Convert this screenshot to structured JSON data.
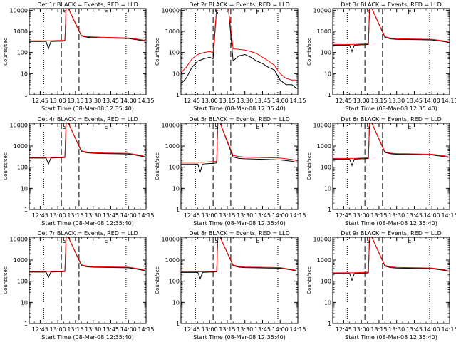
{
  "figure": {
    "marker_letters": [
      "S",
      "E"
    ]
  },
  "colors": {
    "events": "#000000",
    "lld": "#ff0000",
    "frame": "#000000",
    "background": "#ffffff"
  },
  "chart_data": [
    {
      "type": "line",
      "panel": "1r",
      "title": "Det 1r BLACK = Events, RED = LLD",
      "ylabel": "Counts/sec",
      "xlabel": "Start Time (08-Mar-08 12:35:40)",
      "yscale": "log",
      "ylim": [
        1,
        12000
      ],
      "x_ticks": [
        "12:45",
        "13:00",
        "13:15",
        "13:30",
        "13:45",
        "14:00",
        "14:15"
      ],
      "series": [
        {
          "x": [
            "12:35",
            "12:45",
            "12:50",
            "12:52",
            "12:54",
            "13:00",
            "13:03",
            "13:06",
            "13:07",
            "13:09",
            "13:20",
            "13:25",
            "13:30",
            "13:40",
            "13:50",
            "14:00",
            "14:10",
            "14:14"
          ],
          "y": [
            330,
            330,
            330,
            150,
            330,
            340,
            340,
            350,
            12000,
            12000,
            600,
            520,
            500,
            480,
            470,
            460,
            380,
            340
          ]
        },
        {
          "x": [
            "12:35",
            "12:45",
            "12:50",
            "12:52",
            "12:54",
            "13:00",
            "13:03",
            "13:06",
            "13:07",
            "13:09",
            "13:20",
            "13:25",
            "13:30",
            "13:40",
            "13:50",
            "14:00",
            "14:10",
            "14:14"
          ],
          "y": [
            360,
            360,
            360,
            360,
            360,
            370,
            370,
            380,
            12000,
            12000,
            650,
            570,
            540,
            520,
            510,
            490,
            410,
            370
          ]
        }
      ]
    },
    {
      "type": "line",
      "panel": "2r",
      "title": "Det 2r BLACK = Events, RED = LLD",
      "ylabel": "Counts/sec",
      "xlabel": "Start Time (08-Mar-08 12:35:40)",
      "yscale": "log",
      "ylim": [
        1,
        12000
      ],
      "x_ticks": [
        "12:45",
        "13:00",
        "13:15",
        "13:30",
        "13:45",
        "14:00",
        "14:15"
      ],
      "series": [
        {
          "x": [
            "12:35",
            "12:40",
            "12:45",
            "12:50",
            "12:55",
            "13:00",
            "13:03",
            "13:06",
            "13:12",
            "13:16",
            "13:20",
            "13:25",
            "13:30",
            "13:35",
            "13:40",
            "13:45",
            "13:50",
            "13:55",
            "14:00",
            "14:05",
            "14:10",
            "14:14"
          ],
          "y": [
            3,
            6,
            20,
            40,
            50,
            60,
            50,
            12000,
            12000,
            12000,
            40,
            70,
            80,
            60,
            40,
            30,
            20,
            15,
            5,
            3,
            3,
            2
          ]
        },
        {
          "x": [
            "12:35",
            "12:40",
            "12:45",
            "12:50",
            "12:55",
            "13:00",
            "13:03",
            "13:06",
            "13:12",
            "13:16",
            "13:20",
            "13:25",
            "13:30",
            "13:35",
            "13:40",
            "13:45",
            "13:50",
            "13:55",
            "14:00",
            "14:05",
            "14:10",
            "14:14"
          ],
          "y": [
            10,
            20,
            50,
            80,
            100,
            110,
            100,
            12000,
            12000,
            12000,
            150,
            140,
            130,
            110,
            90,
            60,
            40,
            25,
            10,
            6,
            5,
            5
          ]
        }
      ]
    },
    {
      "type": "line",
      "panel": "3r",
      "title": "Det 3r BLACK = Events, RED = LLD",
      "ylabel": "Counts/sec",
      "xlabel": "Start Time (08-Mar-08 12:35:40)",
      "yscale": "log",
      "ylim": [
        1,
        12000
      ],
      "x_ticks": [
        "12:45",
        "13:00",
        "13:15",
        "13:30",
        "13:45",
        "14:00",
        "14:15"
      ],
      "series": [
        {
          "x": [
            "12:35",
            "12:45",
            "12:50",
            "12:52",
            "12:54",
            "13:00",
            "13:03",
            "13:06",
            "13:07",
            "13:09",
            "13:20",
            "13:25",
            "13:30",
            "13:40",
            "13:50",
            "14:00",
            "14:10",
            "14:14"
          ],
          "y": [
            220,
            220,
            220,
            110,
            220,
            230,
            230,
            240,
            12000,
            12000,
            520,
            440,
            420,
            410,
            400,
            390,
            330,
            300
          ]
        },
        {
          "x": [
            "12:35",
            "12:45",
            "12:50",
            "12:52",
            "12:54",
            "13:00",
            "13:03",
            "13:06",
            "13:07",
            "13:09",
            "13:20",
            "13:25",
            "13:30",
            "13:40",
            "13:50",
            "14:00",
            "14:10",
            "14:14"
          ],
          "y": [
            240,
            240,
            240,
            240,
            240,
            250,
            250,
            260,
            12000,
            12000,
            560,
            480,
            450,
            440,
            430,
            420,
            360,
            320
          ]
        }
      ]
    },
    {
      "type": "line",
      "panel": "4r",
      "title": "Det 4r BLACK = Events, RED = LLD",
      "ylabel": "Counts/sec",
      "xlabel": "Start Time (08-Mar-08 12:35:40)",
      "yscale": "log",
      "ylim": [
        1,
        12000
      ],
      "x_ticks": [
        "12:45",
        "13:00",
        "13:15",
        "13:30",
        "13:45",
        "14:00",
        "14:15"
      ],
      "series": [
        {
          "x": [
            "12:35",
            "12:45",
            "12:50",
            "12:52",
            "12:54",
            "13:00",
            "13:03",
            "13:06",
            "13:07",
            "13:09",
            "13:20",
            "13:25",
            "13:30",
            "13:40",
            "13:50",
            "14:00",
            "14:10",
            "14:14"
          ],
          "y": [
            270,
            270,
            270,
            140,
            270,
            280,
            280,
            290,
            12000,
            12000,
            560,
            480,
            460,
            440,
            430,
            420,
            340,
            300
          ]
        },
        {
          "x": [
            "12:35",
            "12:45",
            "12:50",
            "12:52",
            "12:54",
            "13:00",
            "13:03",
            "13:06",
            "13:07",
            "13:09",
            "13:20",
            "13:25",
            "13:30",
            "13:40",
            "13:50",
            "14:00",
            "14:10",
            "14:14"
          ],
          "y": [
            290,
            290,
            290,
            290,
            290,
            300,
            300,
            310,
            12000,
            12000,
            600,
            520,
            490,
            470,
            460,
            450,
            370,
            320
          ]
        }
      ]
    },
    {
      "type": "line",
      "panel": "5r",
      "title": "Det 5r BLACK = Events, RED = LLD",
      "ylabel": "Counts/sec",
      "xlabel": "Start Time (08-Mar-08 12:35:40)",
      "yscale": "log",
      "ylim": [
        1,
        12000
      ],
      "x_ticks": [
        "12:45",
        "13:00",
        "13:15",
        "13:30",
        "13:45",
        "14:00",
        "14:15"
      ],
      "series": [
        {
          "x": [
            "12:35",
            "12:45",
            "12:50",
            "12:52",
            "12:54",
            "13:00",
            "13:03",
            "13:06",
            "13:07",
            "13:09",
            "13:20",
            "13:25",
            "13:30",
            "13:40",
            "13:50",
            "14:00",
            "14:10",
            "14:14"
          ],
          "y": [
            140,
            140,
            140,
            60,
            140,
            150,
            150,
            160,
            12000,
            12000,
            300,
            260,
            250,
            240,
            230,
            220,
            190,
            170
          ]
        },
        {
          "x": [
            "12:35",
            "12:45",
            "12:50",
            "12:52",
            "12:54",
            "13:00",
            "13:03",
            "13:06",
            "13:07",
            "13:09",
            "13:20",
            "13:25",
            "13:30",
            "13:40",
            "13:50",
            "14:00",
            "14:10",
            "14:14"
          ],
          "y": [
            170,
            170,
            170,
            170,
            170,
            180,
            180,
            190,
            12000,
            12000,
            360,
            320,
            300,
            290,
            280,
            270,
            230,
            210
          ]
        }
      ]
    },
    {
      "type": "line",
      "panel": "6r",
      "title": "Det 6r BLACK = Events, RED = LLD",
      "ylabel": "Counts/sec",
      "xlabel": "Start Time (08-Mar-08 12:35:40)",
      "yscale": "log",
      "ylim": [
        1,
        12000
      ],
      "x_ticks": [
        "12:45",
        "13:00",
        "13:15",
        "13:30",
        "13:45",
        "14:00",
        "14:15"
      ],
      "series": [
        {
          "x": [
            "12:35",
            "12:45",
            "12:50",
            "12:52",
            "12:54",
            "13:00",
            "13:03",
            "13:06",
            "13:07",
            "13:09",
            "13:20",
            "13:25",
            "13:30",
            "13:40",
            "13:50",
            "14:00",
            "14:10",
            "14:14"
          ],
          "y": [
            240,
            240,
            240,
            120,
            240,
            250,
            250,
            260,
            12000,
            12000,
            500,
            430,
            410,
            400,
            390,
            380,
            320,
            290
          ]
        },
        {
          "x": [
            "12:35",
            "12:45",
            "12:50",
            "12:52",
            "12:54",
            "13:00",
            "13:03",
            "13:06",
            "13:07",
            "13:09",
            "13:20",
            "13:25",
            "13:30",
            "13:40",
            "13:50",
            "14:00",
            "14:10",
            "14:14"
          ],
          "y": [
            260,
            260,
            260,
            260,
            260,
            270,
            270,
            280,
            12000,
            12000,
            540,
            460,
            440,
            430,
            420,
            410,
            350,
            310
          ]
        }
      ]
    },
    {
      "type": "line",
      "panel": "7r",
      "title": "Det 7r BLACK = Events, RED = LLD",
      "ylabel": "Counts/sec",
      "xlabel": "Start Time (08-Mar-08 12:35:40)",
      "yscale": "log",
      "ylim": [
        1,
        12000
      ],
      "x_ticks": [
        "12:45",
        "13:00",
        "13:15",
        "13:30",
        "13:45",
        "14:00",
        "14:15"
      ],
      "series": [
        {
          "x": [
            "12:35",
            "12:45",
            "12:50",
            "12:52",
            "12:54",
            "13:00",
            "13:03",
            "13:06",
            "13:07",
            "13:09",
            "13:20",
            "13:25",
            "13:30",
            "13:40",
            "13:50",
            "14:00",
            "14:10",
            "14:14"
          ],
          "y": [
            270,
            270,
            270,
            150,
            270,
            280,
            280,
            290,
            12000,
            12000,
            560,
            480,
            460,
            450,
            440,
            430,
            350,
            310
          ]
        },
        {
          "x": [
            "12:35",
            "12:45",
            "12:50",
            "12:52",
            "12:54",
            "13:00",
            "13:03",
            "13:06",
            "13:07",
            "13:09",
            "13:20",
            "13:25",
            "13:30",
            "13:40",
            "13:50",
            "14:00",
            "14:10",
            "14:14"
          ],
          "y": [
            290,
            290,
            290,
            290,
            290,
            300,
            300,
            310,
            12000,
            12000,
            600,
            520,
            490,
            480,
            470,
            460,
            380,
            330
          ]
        }
      ]
    },
    {
      "type": "line",
      "panel": "8r",
      "title": "Det 8r BLACK = Events, RED = LLD",
      "ylabel": "Counts/sec",
      "xlabel": "Start Time (08-Mar-08 12:35:40)",
      "yscale": "log",
      "ylim": [
        1,
        12000
      ],
      "x_ticks": [
        "12:45",
        "13:00",
        "13:15",
        "13:30",
        "13:45",
        "14:00",
        "14:15"
      ],
      "series": [
        {
          "x": [
            "12:35",
            "12:45",
            "12:50",
            "12:52",
            "12:54",
            "13:00",
            "13:03",
            "13:06",
            "13:07",
            "13:09",
            "13:20",
            "13:25",
            "13:30",
            "13:40",
            "13:50",
            "14:00",
            "14:10",
            "14:14"
          ],
          "y": [
            260,
            260,
            260,
            130,
            260,
            270,
            270,
            280,
            12000,
            12000,
            540,
            460,
            440,
            430,
            420,
            410,
            340,
            300
          ]
        },
        {
          "x": [
            "12:35",
            "12:45",
            "12:50",
            "12:52",
            "12:54",
            "13:00",
            "13:03",
            "13:06",
            "13:07",
            "13:09",
            "13:20",
            "13:25",
            "13:30",
            "13:40",
            "13:50",
            "14:00",
            "14:10",
            "14:14"
          ],
          "y": [
            280,
            280,
            280,
            280,
            280,
            290,
            290,
            300,
            12000,
            12000,
            580,
            500,
            470,
            460,
            450,
            440,
            360,
            320
          ]
        }
      ]
    },
    {
      "type": "line",
      "panel": "9r",
      "title": "Det 9r BLACK = Events, RED = LLD",
      "ylabel": "Counts/sec",
      "xlabel": "Start Time (08-Mar-08 12:35:40)",
      "yscale": "log",
      "ylim": [
        1,
        12000
      ],
      "x_ticks": [
        "12:45",
        "13:00",
        "13:15",
        "13:30",
        "13:45",
        "14:00",
        "14:15"
      ],
      "series": [
        {
          "x": [
            "12:35",
            "12:45",
            "12:50",
            "12:52",
            "12:54",
            "13:00",
            "13:03",
            "13:06",
            "13:07",
            "13:09",
            "13:20",
            "13:25",
            "13:30",
            "13:40",
            "13:50",
            "14:00",
            "14:10",
            "14:14"
          ],
          "y": [
            230,
            230,
            230,
            110,
            230,
            240,
            240,
            250,
            12000,
            12000,
            520,
            440,
            420,
            410,
            400,
            390,
            330,
            290
          ]
        },
        {
          "x": [
            "12:35",
            "12:45",
            "12:50",
            "12:52",
            "12:54",
            "13:00",
            "13:03",
            "13:06",
            "13:07",
            "13:09",
            "13:20",
            "13:25",
            "13:30",
            "13:40",
            "13:50",
            "14:00",
            "14:10",
            "14:14"
          ],
          "y": [
            250,
            250,
            250,
            250,
            250,
            260,
            260,
            270,
            12000,
            12000,
            560,
            480,
            450,
            440,
            430,
            420,
            360,
            310
          ]
        }
      ]
    }
  ]
}
